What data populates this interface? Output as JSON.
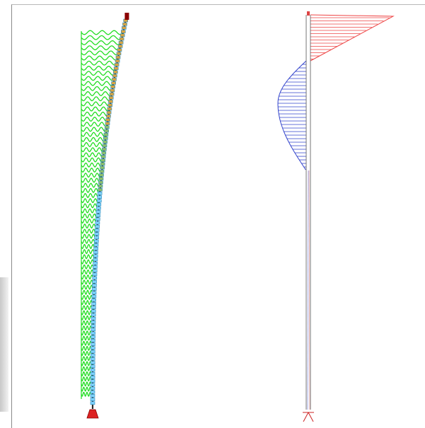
{
  "window": {
    "left_panel": "collapsed-panel-edge"
  },
  "viewport": {
    "background": "#ffffff",
    "border_color": "#8a8a8a"
  },
  "models": [
    {
      "name": "deformed-column-model",
      "parts": [
        "column-node-chain",
        "bending-wave-load",
        "base-support",
        "top-node"
      ],
      "colors": {
        "wave_load": "#22dd22",
        "node_fill": "#7fd3ff",
        "node_outline": "#2e8bb8",
        "support": "#dd2222",
        "top_node": "#8b0000"
      }
    },
    {
      "name": "force-diagram-model",
      "parts": [
        "column-outline",
        "top-triangular-diagram",
        "bulge-diagram",
        "base-support"
      ],
      "colors": {
        "member": "#666666",
        "top_diagram": "#ee4444",
        "bulge_diagram": "#3344cc",
        "support": "#cc2222"
      }
    }
  ]
}
